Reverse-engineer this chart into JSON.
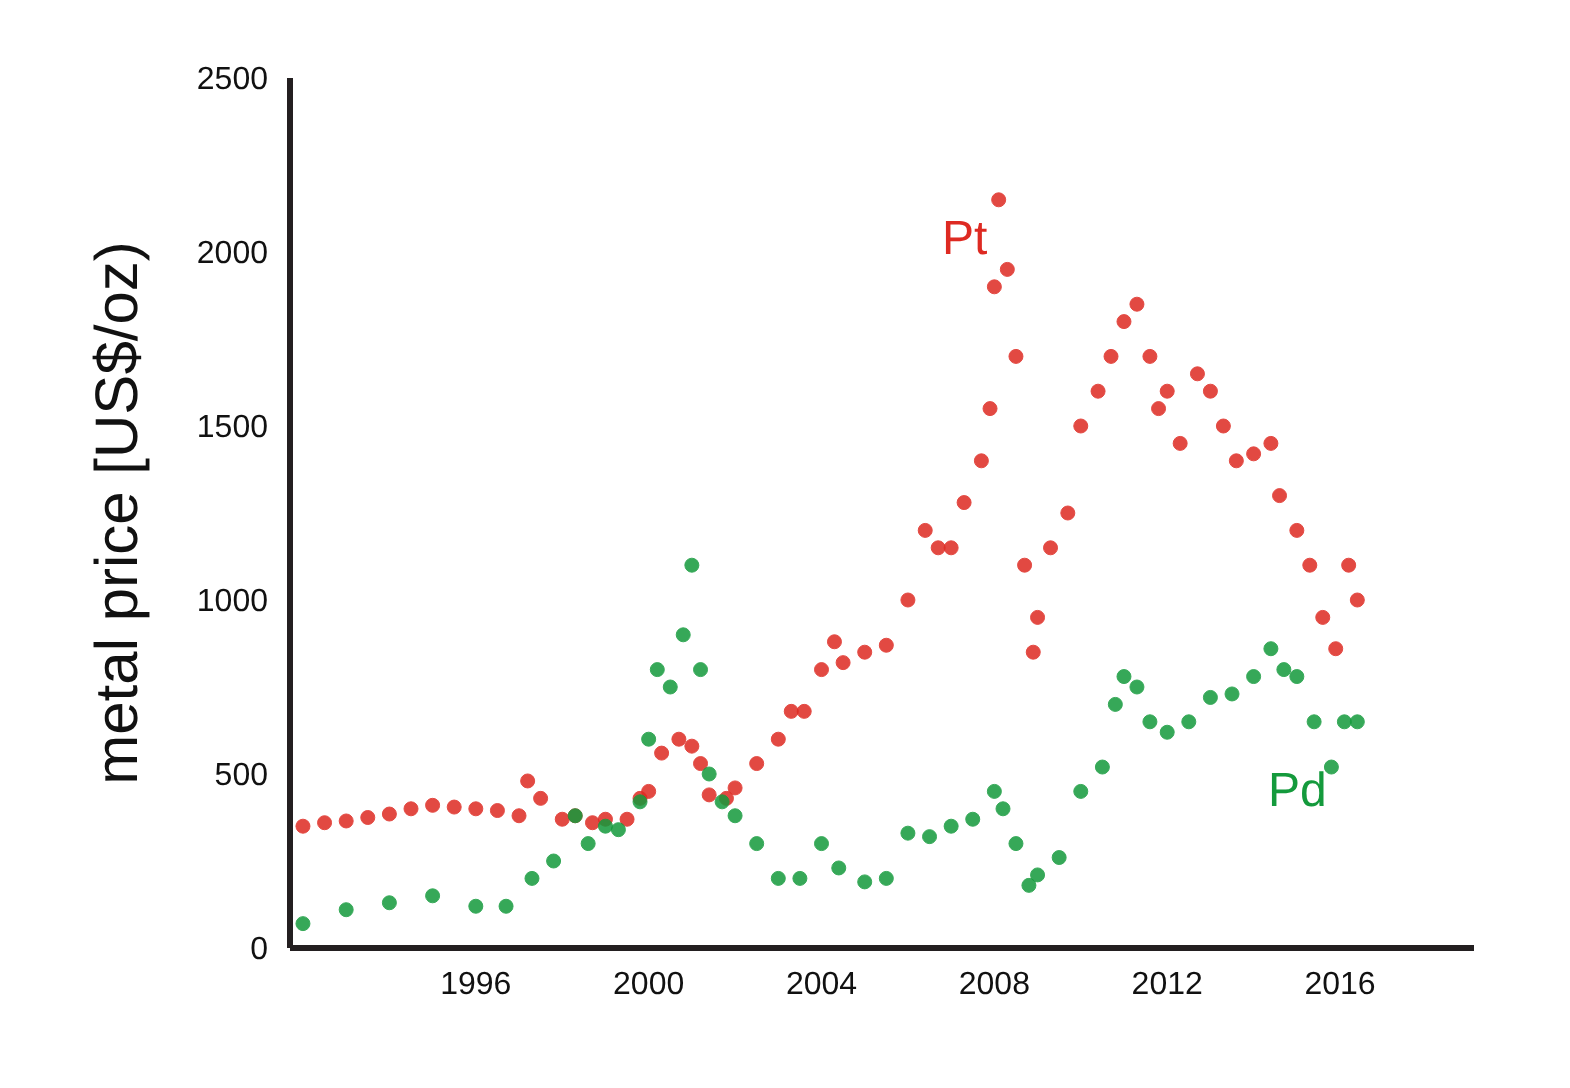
{
  "chart_data": {
    "type": "scatter",
    "ylabel": "metal price [US$/oz)",
    "marker": "circle",
    "legend": false,
    "xlim": [
      1991.7,
      2019.1
    ],
    "xticks": [
      1996,
      2000,
      2004,
      2008,
      2012,
      2016
    ],
    "ylim": [
      0,
      2500
    ],
    "yticks": [
      0,
      500,
      1000,
      1500,
      2000,
      2500
    ],
    "series": [
      {
        "name": "Pt",
        "color": "#de2a22",
        "x": [
          1992.0,
          1992.5,
          1993.0,
          1993.5,
          1994.0,
          1994.5,
          1995.0,
          1995.5,
          1996.0,
          1996.5,
          1997.0,
          1997.2,
          1997.5,
          1998.0,
          1998.3,
          1998.7,
          1999.0,
          1999.5,
          1999.8,
          2000.0,
          2000.3,
          2000.7,
          2001.0,
          2001.2,
          2001.4,
          2001.8,
          2002.0,
          2002.5,
          2003.0,
          2003.3,
          2003.6,
          2004.0,
          2004.3,
          2004.5,
          2005.0,
          2005.5,
          2006.0,
          2006.4,
          2006.7,
          2007.0,
          2007.3,
          2007.7,
          2007.9,
          2008.0,
          2008.1,
          2008.3,
          2008.5,
          2008.7,
          2008.9,
          2009.0,
          2009.3,
          2009.7,
          2010.0,
          2010.4,
          2010.7,
          2011.0,
          2011.3,
          2011.6,
          2011.8,
          2012.0,
          2012.3,
          2012.7,
          2013.0,
          2013.3,
          2013.6,
          2014.0,
          2014.4,
          2014.6,
          2015.0,
          2015.3,
          2015.6,
          2015.9,
          2016.2,
          2016.4
        ],
        "values": [
          350,
          360,
          365,
          375,
          385,
          400,
          410,
          405,
          400,
          395,
          380,
          480,
          430,
          370,
          380,
          360,
          370,
          370,
          430,
          450,
          560,
          600,
          580,
          530,
          440,
          430,
          460,
          530,
          600,
          680,
          680,
          800,
          880,
          820,
          850,
          870,
          1000,
          1200,
          1150,
          1150,
          1280,
          1400,
          1550,
          1900,
          2150,
          1950,
          1700,
          1100,
          850,
          950,
          1150,
          1250,
          1500,
          1600,
          1700,
          1800,
          1850,
          1700,
          1550,
          1600,
          1450,
          1650,
          1600,
          1500,
          1400,
          1420,
          1450,
          1300,
          1200,
          1100,
          950,
          860,
          1100,
          1000
        ]
      },
      {
        "name": "Pd",
        "color": "#149a3c",
        "x": [
          1992.0,
          1993.0,
          1994.0,
          1995.0,
          1996.0,
          1996.7,
          1997.3,
          1997.8,
          1998.3,
          1998.6,
          1999.0,
          1999.3,
          1999.8,
          2000.0,
          2000.2,
          2000.5,
          2000.8,
          2001.0,
          2001.2,
          2001.4,
          2001.7,
          2002.0,
          2002.5,
          2003.0,
          2003.5,
          2004.0,
          2004.4,
          2005.0,
          2005.5,
          2006.0,
          2006.5,
          2007.0,
          2007.5,
          2008.0,
          2008.2,
          2008.5,
          2008.8,
          2009.0,
          2009.5,
          2010.0,
          2010.5,
          2010.8,
          2011.0,
          2011.3,
          2011.6,
          2012.0,
          2012.5,
          2013.0,
          2013.5,
          2014.0,
          2014.4,
          2014.7,
          2015.0,
          2015.4,
          2015.8,
          2016.1,
          2016.4
        ],
        "values": [
          70,
          110,
          130,
          150,
          120,
          120,
          200,
          250,
          380,
          300,
          350,
          340,
          420,
          600,
          800,
          750,
          900,
          1100,
          800,
          500,
          420,
          380,
          300,
          200,
          200,
          300,
          230,
          190,
          200,
          330,
          320,
          350,
          370,
          450,
          400,
          300,
          180,
          210,
          260,
          450,
          520,
          700,
          780,
          750,
          650,
          620,
          650,
          720,
          730,
          780,
          860,
          800,
          780,
          650,
          520,
          650,
          650
        ]
      }
    ]
  }
}
